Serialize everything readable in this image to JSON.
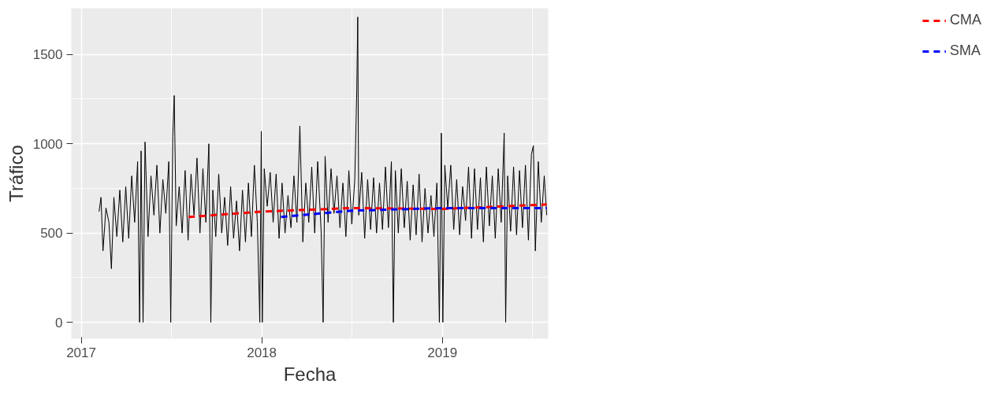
{
  "chart_data": {
    "type": "line",
    "xlabel": "Fecha",
    "ylabel": "Tráfico",
    "xlim": [
      "2016-12-12",
      "2019-08-03"
    ],
    "ylim": [
      -92,
      1759
    ],
    "xticks": [
      {
        "value": "2017-01-01",
        "label": "2017"
      },
      {
        "value": "2018-01-01",
        "label": "2018"
      },
      {
        "value": "2019-01-01",
        "label": "2019"
      }
    ],
    "yticks": [
      0,
      500,
      1000,
      1500
    ],
    "grid": true,
    "legend": "right",
    "series": [
      {
        "color": "#000000",
        "line_style": "solid",
        "x": [
          "2017-02-06",
          "2017-02-10",
          "2017-02-14",
          "2017-02-20",
          "2017-02-26",
          "2017-03-03",
          "2017-03-08",
          "2017-03-14",
          "2017-03-20",
          "2017-03-26",
          "2017-04-01",
          "2017-04-07",
          "2017-04-13",
          "2017-04-19",
          "2017-04-25",
          "2017-04-29",
          "2017-05-02",
          "2017-05-06",
          "2017-05-10",
          "2017-05-16",
          "2017-05-22",
          "2017-05-28",
          "2017-06-03",
          "2017-06-09",
          "2017-06-15",
          "2017-06-21",
          "2017-06-27",
          "2017-07-01",
          "2017-07-05",
          "2017-07-08",
          "2017-07-12",
          "2017-07-18",
          "2017-07-24",
          "2017-07-30",
          "2017-08-05",
          "2017-08-11",
          "2017-08-17",
          "2017-08-23",
          "2017-08-29",
          "2017-09-04",
          "2017-09-10",
          "2017-09-16",
          "2017-09-20",
          "2017-09-24",
          "2017-09-30",
          "2017-10-06",
          "2017-10-12",
          "2017-10-18",
          "2017-10-24",
          "2017-10-30",
          "2017-11-05",
          "2017-11-11",
          "2017-11-17",
          "2017-11-23",
          "2017-11-29",
          "2017-12-05",
          "2017-12-11",
          "2017-12-17",
          "2017-12-23",
          "2017-12-28",
          "2017-12-31",
          "2018-01-02",
          "2018-01-06",
          "2018-01-12",
          "2018-01-18",
          "2018-01-24",
          "2018-01-30",
          "2018-02-05",
          "2018-02-11",
          "2018-02-17",
          "2018-02-23",
          "2018-03-01",
          "2018-03-07",
          "2018-03-13",
          "2018-03-19",
          "2018-03-25",
          "2018-03-31",
          "2018-04-06",
          "2018-04-12",
          "2018-04-18",
          "2018-04-24",
          "2018-05-01",
          "2018-05-05",
          "2018-05-09",
          "2018-05-15",
          "2018-05-21",
          "2018-05-27",
          "2018-06-02",
          "2018-06-08",
          "2018-06-14",
          "2018-06-20",
          "2018-06-26",
          "2018-07-02",
          "2018-07-08",
          "2018-07-12",
          "2018-07-14",
          "2018-07-16",
          "2018-07-22",
          "2018-07-28",
          "2018-08-03",
          "2018-08-09",
          "2018-08-15",
          "2018-08-21",
          "2018-08-27",
          "2018-09-02",
          "2018-09-08",
          "2018-09-14",
          "2018-09-20",
          "2018-09-24",
          "2018-09-28",
          "2018-10-04",
          "2018-10-10",
          "2018-10-16",
          "2018-10-22",
          "2018-10-28",
          "2018-11-03",
          "2018-11-09",
          "2018-11-15",
          "2018-11-21",
          "2018-11-27",
          "2018-12-03",
          "2018-12-09",
          "2018-12-15",
          "2018-12-21",
          "2018-12-26",
          "2018-12-30",
          "2019-01-02",
          "2019-01-06",
          "2019-01-12",
          "2019-01-18",
          "2019-01-24",
          "2019-01-30",
          "2019-02-05",
          "2019-02-11",
          "2019-02-17",
          "2019-02-23",
          "2019-03-01",
          "2019-03-07",
          "2019-03-13",
          "2019-03-19",
          "2019-03-25",
          "2019-03-31",
          "2019-04-06",
          "2019-04-12",
          "2019-04-18",
          "2019-04-24",
          "2019-04-30",
          "2019-05-06",
          "2019-05-09",
          "2019-05-13",
          "2019-05-19",
          "2019-05-25",
          "2019-05-31",
          "2019-06-06",
          "2019-06-12",
          "2019-06-18",
          "2019-06-24",
          "2019-06-30",
          "2019-07-04",
          "2019-07-08",
          "2019-07-14",
          "2019-07-20",
          "2019-07-26",
          "2019-07-31"
        ],
        "values": [
          620,
          700,
          400,
          640,
          560,
          300,
          700,
          480,
          740,
          450,
          760,
          470,
          820,
          560,
          900,
          0,
          960,
          0,
          1010,
          480,
          820,
          600,
          880,
          500,
          800,
          610,
          900,
          0,
          1040,
          1270,
          540,
          760,
          500,
          850,
          460,
          830,
          600,
          920,
          500,
          860,
          560,
          1000,
          0,
          740,
          480,
          830,
          500,
          700,
          430,
          760,
          470,
          680,
          400,
          740,
          450,
          780,
          480,
          880,
          560,
          0,
          1070,
          0,
          860,
          650,
          840,
          560,
          830,
          470,
          780,
          500,
          710,
          530,
          820,
          560,
          1100,
          450,
          780,
          560,
          870,
          500,
          900,
          510,
          0,
          930,
          560,
          860,
          610,
          820,
          530,
          780,
          480,
          850,
          550,
          800,
          1290,
          1710,
          600,
          840,
          470,
          800,
          520,
          810,
          500,
          780,
          520,
          870,
          530,
          900,
          0,
          850,
          500,
          860,
          530,
          790,
          460,
          770,
          490,
          830,
          450,
          750,
          500,
          710,
          480,
          780,
          0,
          1060,
          0,
          880,
          640,
          880,
          520,
          800,
          490,
          760,
          570,
          870,
          470,
          860,
          520,
          810,
          450,
          870,
          540,
          820,
          470,
          860,
          560,
          1060,
          0,
          820,
          510,
          870,
          490,
          850,
          530,
          880,
          460,
          940,
          990,
          400,
          900,
          560,
          820,
          600
        ]
      },
      {
        "name": "CMA",
        "color": "#ff0000",
        "line_style": "dashed",
        "x": [
          "2017-08-06",
          "2018-01-01",
          "2018-07-01",
          "2019-01-01",
          "2019-07-31"
        ],
        "values": [
          590,
          620,
          640,
          635,
          660
        ]
      },
      {
        "name": "SMA",
        "color": "#0000ff",
        "line_style": "dashed",
        "x": [
          "2018-02-09",
          "2018-07-01",
          "2019-01-01",
          "2019-07-31"
        ],
        "values": [
          590,
          625,
          640,
          640
        ]
      }
    ]
  }
}
